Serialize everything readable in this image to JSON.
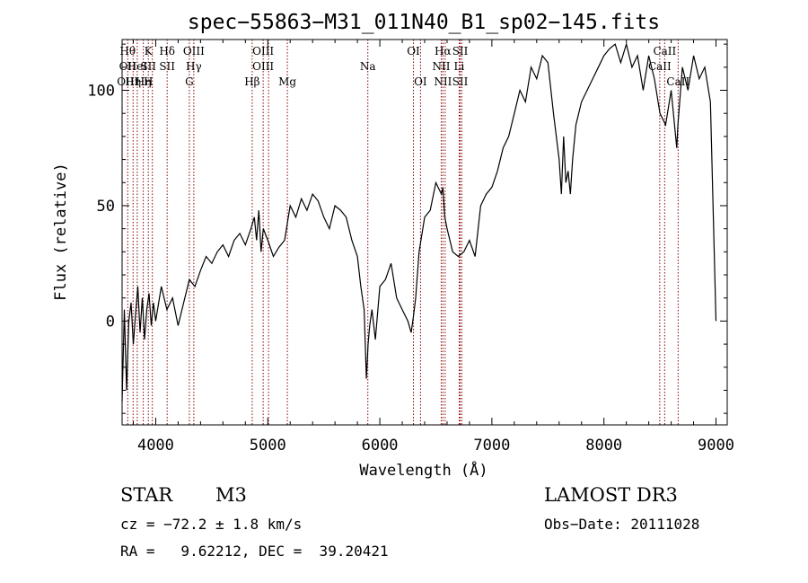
{
  "chart_data": {
    "type": "line",
    "title": "spec−55863−M31_011N40_B1_sp02−145.fits",
    "xlabel": "Wavelength (Å)",
    "ylabel": "Flux (relative)",
    "xlim": [
      3700,
      9100
    ],
    "ylim": [
      -45,
      122
    ],
    "xticks": [
      4000,
      5000,
      6000,
      7000,
      8000,
      9000
    ],
    "yticks": [
      0,
      50,
      100
    ],
    "line_color": "#000000",
    "marker_color": "#8b0000",
    "series": [
      {
        "name": "flux",
        "x": [
          3700,
          3720,
          3740,
          3760,
          3780,
          3800,
          3820,
          3840,
          3860,
          3880,
          3900,
          3920,
          3940,
          3960,
          3980,
          4000,
          4050,
          4100,
          4150,
          4200,
          4250,
          4300,
          4350,
          4400,
          4450,
          4500,
          4550,
          4600,
          4650,
          4700,
          4750,
          4800,
          4850,
          4880,
          4900,
          4920,
          4940,
          4960,
          5000,
          5050,
          5100,
          5150,
          5200,
          5250,
          5300,
          5350,
          5400,
          5450,
          5500,
          5550,
          5600,
          5650,
          5700,
          5750,
          5800,
          5830,
          5860,
          5880,
          5895,
          5910,
          5930,
          5960,
          6000,
          6050,
          6100,
          6150,
          6200,
          6250,
          6280,
          6300,
          6320,
          6350,
          6400,
          6450,
          6500,
          6550,
          6563,
          6580,
          6600,
          6650,
          6700,
          6750,
          6800,
          6850,
          6900,
          6950,
          7000,
          7050,
          7100,
          7150,
          7200,
          7250,
          7300,
          7350,
          7400,
          7450,
          7500,
          7550,
          7600,
          7620,
          7640,
          7660,
          7680,
          7700,
          7720,
          7750,
          7800,
          7850,
          7900,
          7950,
          8000,
          8050,
          8100,
          8150,
          8200,
          8250,
          8300,
          8350,
          8400,
          8450,
          8500,
          8550,
          8600,
          8650,
          8660,
          8700,
          8750,
          8800,
          8850,
          8900,
          8950,
          9000
        ],
        "y": [
          -35,
          5,
          -30,
          0,
          8,
          -10,
          3,
          15,
          -5,
          10,
          -8,
          5,
          12,
          -2,
          8,
          0,
          15,
          5,
          10,
          -2,
          8,
          18,
          15,
          22,
          28,
          25,
          30,
          33,
          28,
          35,
          38,
          33,
          40,
          45,
          35,
          48,
          30,
          40,
          35,
          28,
          32,
          35,
          50,
          45,
          53,
          48,
          55,
          52,
          45,
          40,
          50,
          48,
          45,
          35,
          28,
          15,
          5,
          -25,
          -10,
          -2,
          5,
          -8,
          15,
          18,
          25,
          10,
          5,
          0,
          -5,
          2,
          10,
          30,
          45,
          48,
          60,
          55,
          58,
          45,
          40,
          30,
          28,
          30,
          35,
          28,
          50,
          55,
          58,
          65,
          75,
          80,
          90,
          100,
          95,
          110,
          105,
          115,
          112,
          90,
          70,
          55,
          80,
          60,
          65,
          55,
          70,
          85,
          95,
          100,
          105,
          110,
          115,
          118,
          120,
          112,
          120,
          110,
          115,
          100,
          115,
          105,
          90,
          85,
          100,
          75,
          85,
          110,
          100,
          115,
          105,
          110,
          95,
          0
        ]
      }
    ],
    "line_markers": [
      {
        "wavelength": 3750,
        "labels": [
          "Hθ",
          "OII",
          "OIII"
        ]
      },
      {
        "wavelength": 3798,
        "labels": [
          "",
          "",
          "Hη"
        ]
      },
      {
        "wavelength": 3835,
        "labels": [
          "",
          "HeI",
          ""
        ]
      },
      {
        "wavelength": 3889,
        "labels": [
          "",
          "",
          "Hη"
        ]
      },
      {
        "wavelength": 3934,
        "labels": [
          "K",
          "SII",
          "H"
        ]
      },
      {
        "wavelength": 3970,
        "labels": [
          "",
          "",
          ""
        ]
      },
      {
        "wavelength": 4102,
        "labels": [
          "Hδ",
          "SII",
          ""
        ]
      },
      {
        "wavelength": 4300,
        "labels": [
          "",
          "",
          "G"
        ]
      },
      {
        "wavelength": 4340,
        "labels": [
          "OIII",
          "Hγ",
          ""
        ]
      },
      {
        "wavelength": 4861,
        "labels": [
          "",
          "",
          "Hβ"
        ]
      },
      {
        "wavelength": 4959,
        "labels": [
          "OIII",
          "OIII",
          ""
        ]
      },
      {
        "wavelength": 5007,
        "labels": [
          "",
          "",
          ""
        ]
      },
      {
        "wavelength": 5175,
        "labels": [
          "",
          "",
          "Mg"
        ]
      },
      {
        "wavelength": 5893,
        "labels": [
          "",
          "Na",
          ""
        ]
      },
      {
        "wavelength": 6300,
        "labels": [
          "OI",
          "",
          ""
        ]
      },
      {
        "wavelength": 6363,
        "labels": [
          "",
          "",
          "OI"
        ]
      },
      {
        "wavelength": 6548,
        "labels": [
          "",
          "NII",
          ""
        ]
      },
      {
        "wavelength": 6563,
        "labels": [
          "Hα",
          "",
          "NII"
        ]
      },
      {
        "wavelength": 6583,
        "labels": [
          "",
          "",
          ""
        ]
      },
      {
        "wavelength": 6708,
        "labels": [
          "",
          "Li",
          ""
        ]
      },
      {
        "wavelength": 6717,
        "labels": [
          "SII",
          "",
          "SII"
        ]
      },
      {
        "wavelength": 6731,
        "labels": [
          "",
          "",
          ""
        ]
      },
      {
        "wavelength": 8498,
        "labels": [
          "",
          "CaII",
          ""
        ]
      },
      {
        "wavelength": 8542,
        "labels": [
          "CaII",
          "",
          ""
        ]
      },
      {
        "wavelength": 8662,
        "labels": [
          "",
          "",
          "CaII"
        ]
      }
    ]
  },
  "info": {
    "object_class": "STAR",
    "subclass": "M3",
    "survey": "LAMOST DR3",
    "cz_line": "cz = −72.2 ± 1.8 km/s",
    "obs_date_line": "Obs−Date: 20111028",
    "coords_line": "RA =   9.62212, DEC =  39.20421"
  }
}
